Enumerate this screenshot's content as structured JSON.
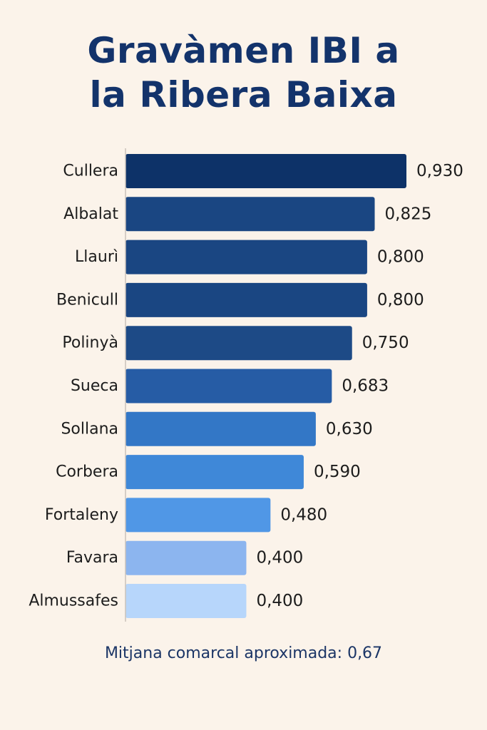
{
  "chart_data": {
    "type": "bar",
    "orientation": "horizontal",
    "title_lines": [
      "Gravàmen IBI a",
      "la Ribera Baixa"
    ],
    "categories": [
      "Cullera",
      "Albalat",
      "Llaurì",
      "Benicull",
      "Polinyà",
      "Sueca",
      "Sollana",
      "Corbera",
      "Fortaleny",
      "Favara",
      "Almussafes"
    ],
    "value_labels": [
      "0,930",
      "0,825",
      "0,800",
      "0,800",
      "0,750",
      "0,683",
      "0,630",
      "0,590",
      "0,480",
      "0,400",
      "0,400"
    ],
    "values": [
      0.93,
      0.825,
      0.8,
      0.8,
      0.75,
      0.683,
      0.63,
      0.59,
      0.48,
      0.4,
      0.4
    ],
    "bar_colors": [
      "#0d3268",
      "#1a4682",
      "#1a4682",
      "#1a4682",
      "#1d4a86",
      "#265ca5",
      "#3377c6",
      "#3f88d8",
      "#5097e6",
      "#8cb5ef",
      "#b7d6fb"
    ],
    "xlim": [
      0,
      0.93
    ],
    "grid": false,
    "legend": "none",
    "note": "Mitjana comarcal aproximada: 0,67"
  }
}
